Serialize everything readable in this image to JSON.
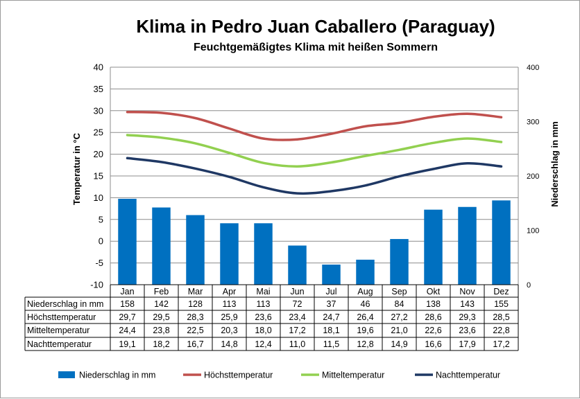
{
  "chart_data": {
    "type": "bar+line",
    "title": "Klima in Pedro Juan Caballero (Paraguay)",
    "subtitle": "Feuchtgemäßigtes Klima mit heißen Sommern",
    "ylabel_left": "Temperatur in °C",
    "ylabel_right": "Niederschlag in mm",
    "ylim_left": [
      -10,
      40
    ],
    "ylim_right": [
      0,
      400
    ],
    "yticks_left": [
      "40",
      "35",
      "30",
      "25",
      "20",
      "15",
      "10",
      "5",
      "0",
      "-5",
      "-10"
    ],
    "yticks_right": [
      "400",
      "300",
      "200",
      "100",
      "0"
    ],
    "categories": [
      "Jan",
      "Feb",
      "Mar",
      "Apr",
      "Mai",
      "Jun",
      "Jul",
      "Aug",
      "Sep",
      "Okt",
      "Nov",
      "Dez"
    ],
    "grid": true,
    "legend_position": "bottom",
    "series": [
      {
        "name": "Niederschlag in mm",
        "kind": "bar",
        "axis": "right",
        "color": "#0070C0",
        "values": [
          158,
          142,
          128,
          113,
          113,
          72,
          37,
          46,
          84,
          138,
          143,
          155
        ],
        "labels": [
          "158",
          "142",
          "128",
          "113",
          "113",
          "72",
          "37",
          "46",
          "84",
          "138",
          "143",
          "155"
        ]
      },
      {
        "name": "Höchsttemperatur",
        "kind": "line",
        "axis": "left",
        "color": "#C0504D",
        "values": [
          29.7,
          29.5,
          28.3,
          25.9,
          23.6,
          23.4,
          24.7,
          26.4,
          27.2,
          28.6,
          29.3,
          28.5
        ],
        "labels": [
          "29,7",
          "29,5",
          "28,3",
          "25,9",
          "23,6",
          "23,4",
          "24,7",
          "26,4",
          "27,2",
          "28,6",
          "29,3",
          "28,5"
        ]
      },
      {
        "name": "Mitteltemperatur",
        "kind": "line",
        "axis": "left",
        "color": "#92D050",
        "values": [
          24.4,
          23.8,
          22.5,
          20.3,
          18.0,
          17.2,
          18.1,
          19.6,
          21.0,
          22.6,
          23.6,
          22.8
        ],
        "labels": [
          "24,4",
          "23,8",
          "22,5",
          "20,3",
          "18,0",
          "17,2",
          "18,1",
          "19,6",
          "21,0",
          "22,6",
          "23,6",
          "22,8"
        ]
      },
      {
        "name": "Nachttemperatur",
        "kind": "line",
        "axis": "left",
        "color": "#1F3864",
        "values": [
          19.1,
          18.2,
          16.7,
          14.8,
          12.4,
          11.0,
          11.5,
          12.8,
          14.9,
          16.6,
          17.9,
          17.2
        ],
        "labels": [
          "19,1",
          "18,2",
          "16,7",
          "14,8",
          "12,4",
          "11,0",
          "11,5",
          "12,8",
          "14,9",
          "16,6",
          "17,9",
          "17,2"
        ]
      }
    ]
  }
}
